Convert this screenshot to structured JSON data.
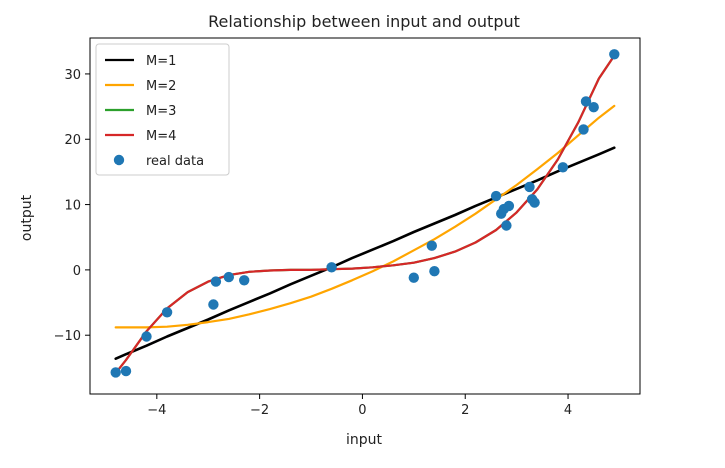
{
  "chart_data": {
    "type": "line",
    "title": "Relationship between input and output",
    "xlabel": "input",
    "ylabel": "output",
    "xlim": [
      -5.3,
      5.4
    ],
    "ylim": [
      -19,
      35.5
    ],
    "xticks": [
      -4,
      -2,
      0,
      2,
      4
    ],
    "yticks": [
      -10,
      0,
      10,
      20,
      30
    ],
    "xtick_labels": [
      "−4",
      "−2",
      "0",
      "2",
      "4"
    ],
    "ytick_labels": [
      "−10",
      "0",
      "10",
      "20",
      "30"
    ],
    "grid": false,
    "legend_position": "upper left",
    "x": [
      -4.8,
      -4.6,
      -4.2,
      -3.8,
      -3.4,
      -3.0,
      -2.6,
      -2.2,
      -1.8,
      -1.4,
      -1.0,
      -0.6,
      -0.2,
      0.2,
      0.6,
      1.0,
      1.4,
      1.8,
      2.2,
      2.6,
      3.0,
      3.4,
      3.8,
      4.2,
      4.6,
      4.9
    ],
    "series": [
      {
        "name": "M=1",
        "color": "#000000",
        "values": [
          -13.6,
          -12.9,
          -11.6,
          -10.2,
          -8.9,
          -7.6,
          -6.2,
          -4.9,
          -3.6,
          -2.2,
          -0.9,
          0.4,
          1.8,
          3.1,
          4.4,
          5.8,
          7.1,
          8.4,
          9.8,
          11.1,
          12.4,
          13.7,
          15.1,
          16.4,
          17.7,
          18.7
        ]
      },
      {
        "name": "M=2",
        "color": "#ffa500",
        "values": [
          -8.8,
          -8.8,
          -8.8,
          -8.7,
          -8.4,
          -8.0,
          -7.5,
          -6.8,
          -6.0,
          -5.1,
          -4.1,
          -2.9,
          -1.6,
          -0.2,
          1.3,
          3.0,
          4.7,
          6.6,
          8.6,
          10.8,
          13.0,
          15.4,
          17.9,
          20.6,
          23.3,
          25.1
        ]
      },
      {
        "name": "M=3",
        "color": "#2ca02c",
        "values": [
          -15.8,
          -13.8,
          -9.4,
          -5.9,
          -3.4,
          -1.8,
          -0.8,
          -0.3,
          -0.1,
          0.0,
          0.0,
          0.1,
          0.2,
          0.4,
          0.7,
          1.1,
          1.8,
          2.8,
          4.2,
          6.1,
          8.8,
          12.3,
          16.9,
          22.6,
          29.3,
          32.8
        ]
      },
      {
        "name": "M=4",
        "color": "#d62728",
        "values": [
          -15.8,
          -13.8,
          -9.4,
          -5.9,
          -3.4,
          -1.8,
          -0.8,
          -0.3,
          -0.1,
          0.0,
          0.0,
          0.1,
          0.2,
          0.4,
          0.7,
          1.1,
          1.8,
          2.8,
          4.2,
          6.1,
          8.8,
          12.3,
          16.9,
          22.6,
          29.3,
          32.8
        ]
      }
    ],
    "scatter": {
      "name": "real data",
      "color": "#1f77b4",
      "points": [
        [
          -4.8,
          -15.7
        ],
        [
          -4.6,
          -15.5
        ],
        [
          -4.2,
          -10.2
        ],
        [
          -3.8,
          -6.5
        ],
        [
          -2.9,
          -5.3
        ],
        [
          -2.85,
          -1.8
        ],
        [
          -2.6,
          -1.1
        ],
        [
          -2.3,
          -1.6
        ],
        [
          -0.6,
          0.4
        ],
        [
          1.0,
          -1.2
        ],
        [
          1.35,
          3.7
        ],
        [
          1.4,
          -0.2
        ],
        [
          2.6,
          11.3
        ],
        [
          2.7,
          8.6
        ],
        [
          2.75,
          9.3
        ],
        [
          2.8,
          6.8
        ],
        [
          2.85,
          9.8
        ],
        [
          3.25,
          12.7
        ],
        [
          3.3,
          10.8
        ],
        [
          3.35,
          10.3
        ],
        [
          3.9,
          15.7
        ],
        [
          4.3,
          21.5
        ],
        [
          4.35,
          25.8
        ],
        [
          4.5,
          24.9
        ],
        [
          4.9,
          33.0
        ]
      ]
    }
  }
}
